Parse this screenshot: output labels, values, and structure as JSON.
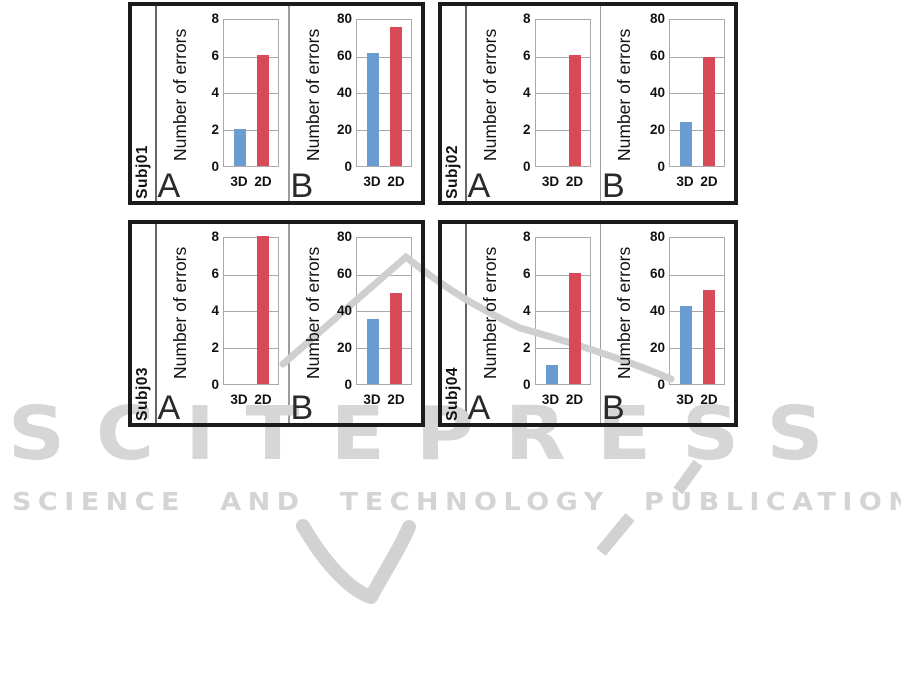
{
  "figure": {
    "watermark": {
      "brand": "SCITEPRESS",
      "subtitle": "SCIENCE AND TECHNOLOGY PUBLICATIONS"
    }
  },
  "colors": {
    "bar_3d": "#6a9bd1",
    "bar_2d": "#d84a57",
    "gridline": "#a9a9a9",
    "panel_border": "#1b1b1b",
    "watermark": "#d4d4d4"
  },
  "chart_data": [
    {
      "type": "bar",
      "subject": "Subj01",
      "panel": "A",
      "ylabel": "Number of errors",
      "categories": [
        "3D",
        "2D"
      ],
      "values": [
        2,
        6
      ],
      "ylim": [
        0,
        8
      ],
      "yticks": [
        0,
        2,
        4,
        6,
        8
      ],
      "grid": true,
      "legend": "none"
    },
    {
      "type": "bar",
      "subject": "Subj01",
      "panel": "B",
      "ylabel": "Number of errors",
      "categories": [
        "3D",
        "2D"
      ],
      "values": [
        61,
        75
      ],
      "ylim": [
        0,
        80
      ],
      "yticks": [
        0,
        20,
        40,
        60,
        80
      ],
      "grid": true,
      "legend": "none"
    },
    {
      "type": "bar",
      "subject": "Subj02",
      "panel": "A",
      "ylabel": "Number of errors",
      "categories": [
        "3D",
        "2D"
      ],
      "values": [
        0,
        6
      ],
      "ylim": [
        0,
        8
      ],
      "yticks": [
        0,
        2,
        4,
        6,
        8
      ],
      "grid": true,
      "legend": "none"
    },
    {
      "type": "bar",
      "subject": "Subj02",
      "panel": "B",
      "ylabel": "Number of errors",
      "categories": [
        "3D",
        "2D"
      ],
      "values": [
        24,
        59
      ],
      "ylim": [
        0,
        80
      ],
      "yticks": [
        0,
        20,
        40,
        60,
        80
      ],
      "grid": true,
      "legend": "none"
    },
    {
      "type": "bar",
      "subject": "Subj03",
      "panel": "A",
      "ylabel": "Number of errors",
      "categories": [
        "3D",
        "2D"
      ],
      "values": [
        0,
        8
      ],
      "ylim": [
        0,
        8
      ],
      "yticks": [
        0,
        2,
        4,
        6,
        8
      ],
      "grid": true,
      "legend": "none"
    },
    {
      "type": "bar",
      "subject": "Subj03",
      "panel": "B",
      "ylabel": "Number of errors",
      "categories": [
        "3D",
        "2D"
      ],
      "values": [
        35,
        49
      ],
      "ylim": [
        0,
        80
      ],
      "yticks": [
        0,
        20,
        40,
        60,
        80
      ],
      "grid": true,
      "legend": "none"
    },
    {
      "type": "bar",
      "subject": "Subj04",
      "panel": "A",
      "ylabel": "Number of errors",
      "categories": [
        "3D",
        "2D"
      ],
      "values": [
        1,
        6
      ],
      "ylim": [
        0,
        8
      ],
      "yticks": [
        0,
        2,
        4,
        6,
        8
      ],
      "grid": true,
      "legend": "none"
    },
    {
      "type": "bar",
      "subject": "Subj04",
      "panel": "B",
      "ylabel": "Number of errors",
      "categories": [
        "3D",
        "2D"
      ],
      "values": [
        42,
        51
      ],
      "ylim": [
        0,
        80
      ],
      "yticks": [
        0,
        20,
        40,
        60,
        80
      ],
      "grid": true,
      "legend": "none"
    }
  ]
}
